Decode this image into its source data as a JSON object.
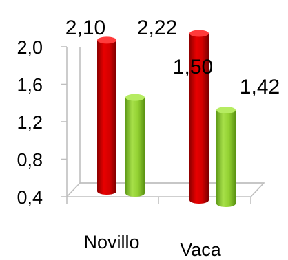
{
  "chart_data": {
    "type": "bar",
    "style": "3d-cylinder",
    "title": "",
    "xlabel": "",
    "ylabel": "",
    "categories": [
      "Novillo",
      "Vaca"
    ],
    "series": [
      {
        "color": "#e00000",
        "values": [
          2.1,
          2.22
        ]
      },
      {
        "color": "#8fd12f",
        "values": [
          1.5,
          1.42
        ]
      }
    ],
    "data_labels": [
      [
        "2,10",
        "2,22"
      ],
      [
        "1,50",
        "1,42"
      ]
    ],
    "ylim": [
      0.4,
      2.0
    ],
    "y_ticks": [
      0.4,
      0.8,
      1.2,
      1.6,
      2.0
    ],
    "y_tick_labels": [
      "0,4",
      "0,8",
      "1,2",
      "1,6",
      "2,0"
    ],
    "grid": false,
    "legend": "none"
  }
}
